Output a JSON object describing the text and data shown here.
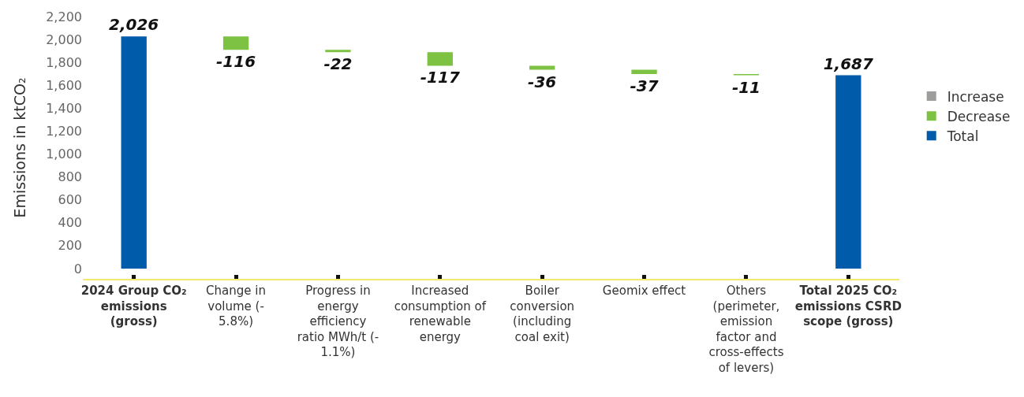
{
  "chart_data": {
    "type": "bar",
    "ylabel": "Emissions in ktCO₂",
    "categories": [
      "2024 Group CO₂ emissions (gross)",
      "Change in volume (- 5.8%)",
      "Progress in energy efficiency ratio MWh/t (- 1.1%)",
      "Increased consumption of renewable energy",
      "Boiler conversion (including coal exit)",
      "Geomix effect",
      "Others (perimeter, emission factor and cross-effects of levers)",
      "Total 2025 CO₂ emissions CSRD scope (gross)"
    ],
    "series": [
      {
        "name": "Increase",
        "color": "#9d9d9c",
        "values": [
          null,
          null,
          null,
          null,
          null,
          null,
          null,
          null
        ]
      },
      {
        "name": "Decrease",
        "color": "#7dc242",
        "values": [
          null,
          -116,
          -22,
          -117,
          -36,
          -37,
          -11,
          null
        ],
        "base": [
          null,
          2026,
          1910,
          1888,
          1771,
          1735,
          1698,
          null
        ],
        "value_labels": [
          null,
          "-116",
          "-22",
          "-117",
          "-36",
          "-37",
          "-11",
          null
        ]
      },
      {
        "name": "Total",
        "color": "#005baa",
        "values": [
          2026,
          null,
          null,
          null,
          null,
          null,
          null,
          1687
        ],
        "value_labels": [
          "2,026",
          null,
          null,
          null,
          null,
          null,
          null,
          "1,687"
        ]
      }
    ],
    "ylim": [
      -90,
      2200
    ],
    "yticks": [
      {
        "value": 0,
        "label": "0"
      },
      {
        "value": 200,
        "label": "200"
      },
      {
        "value": 400,
        "label": "400"
      },
      {
        "value": 600,
        "label": "600"
      },
      {
        "value": 800,
        "label": "800"
      },
      {
        "value": 1000,
        "label": "1,000"
      },
      {
        "value": 1200,
        "label": "1,200"
      },
      {
        "value": 1400,
        "label": "1,400"
      },
      {
        "value": 1600,
        "label": "1,600"
      },
      {
        "value": 1800,
        "label": "1,800"
      },
      {
        "value": 2000,
        "label": "2,000"
      },
      {
        "value": 2200,
        "label": "2,200"
      }
    ],
    "grid": false,
    "legend": "right"
  }
}
